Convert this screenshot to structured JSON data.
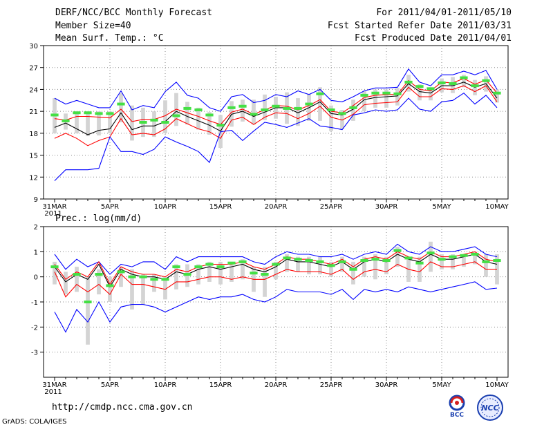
{
  "header": {
    "left_line1": "DERF/NCC/BCC Monthly Forecast",
    "left_line2": "Member Size=40",
    "left_line3": "Mean Surf. Temp.: °C",
    "right_line1": "For 2011/04/01-2011/05/10",
    "right_line2": "Fcst Started Refer Date 2011/03/31",
    "right_line3": "Fcst Produced Date 2011/04/01"
  },
  "panel2_title": "Prec.: log(mm/d)",
  "footer": {
    "url": "http://cmdp.ncc.cma.gov.cn",
    "credit": "GrADS: COLA/IGES",
    "logo1_text": "BCC",
    "logo2_text": "NCC"
  },
  "colors": {
    "min_max": "#0000ff",
    "spread": "#ff0000",
    "mean": "#000000",
    "box": "#d4d4d4",
    "marker": "#44e044",
    "grid": "#888888"
  },
  "chart_data": [
    {
      "type": "line",
      "title": "Mean Surf. Temp.: °C",
      "x_ticks": [
        "31MAR",
        "5APR",
        "10APR",
        "15APR",
        "20APR",
        "25APR",
        "30APR",
        "5MAY",
        "10MAY"
      ],
      "x_tick_days": [
        0,
        5,
        10,
        15,
        20,
        25,
        30,
        35,
        40
      ],
      "x_sublabel": "2011",
      "ylim": [
        9,
        30
      ],
      "yticks": [
        9,
        12,
        15,
        18,
        21,
        24,
        27,
        30
      ],
      "grid": true,
      "box_half_width_days": 0.18,
      "marker_half_width_days": 0.35,
      "series": [
        {
          "name": "max",
          "color": "blue",
          "values": [
            22.8,
            22.0,
            22.5,
            22.0,
            21.5,
            21.5,
            23.8,
            21.2,
            21.8,
            21.5,
            23.7,
            25.0,
            23.2,
            22.8,
            21.5,
            21.0,
            23.0,
            23.3,
            22.2,
            22.5,
            23.3,
            23.0,
            23.8,
            23.3,
            24.0,
            22.5,
            22.3,
            23.0,
            23.8,
            24.2,
            24.2,
            24.3,
            26.8,
            25.0,
            24.5,
            26.0,
            26.0,
            26.5,
            26.0,
            26.6,
            24.0
          ]
        },
        {
          "name": "spread-high",
          "color": "red",
          "values": [
            20.0,
            19.8,
            20.3,
            20.3,
            20.2,
            20.1,
            21.3,
            19.6,
            19.9,
            19.9,
            20.4,
            21.3,
            20.8,
            20.3,
            19.7,
            19.2,
            20.9,
            21.3,
            20.6,
            21.2,
            21.8,
            21.7,
            21.2,
            21.8,
            22.6,
            21.0,
            20.8,
            21.8,
            22.9,
            23.2,
            23.3,
            23.3,
            25.2,
            24.0,
            23.8,
            25.0,
            24.9,
            25.5,
            24.7,
            25.3,
            23.5
          ]
        },
        {
          "name": "mean",
          "color": "black",
          "values": [
            18.8,
            19.4,
            18.6,
            17.8,
            18.4,
            18.6,
            20.8,
            18.5,
            19.0,
            19.0,
            19.6,
            21.0,
            20.3,
            19.7,
            19.1,
            18.3,
            20.6,
            21.0,
            20.3,
            20.9,
            21.5,
            21.5,
            20.8,
            21.5,
            22.3,
            20.7,
            20.5,
            21.3,
            22.6,
            22.9,
            23.0,
            23.1,
            24.8,
            23.7,
            23.5,
            24.5,
            24.5,
            25.0,
            24.3,
            24.8,
            22.8
          ]
        },
        {
          "name": "spread-low",
          "color": "red",
          "values": [
            17.3,
            18.0,
            17.3,
            16.3,
            17.0,
            17.5,
            20.0,
            17.8,
            18.0,
            17.8,
            18.6,
            20.0,
            19.3,
            18.6,
            18.2,
            17.3,
            19.8,
            20.2,
            19.2,
            20.2,
            20.8,
            20.7,
            20.0,
            20.7,
            21.7,
            20.2,
            19.8,
            20.6,
            21.9,
            22.1,
            22.2,
            22.3,
            24.3,
            23.0,
            23.0,
            24.1,
            24.0,
            24.5,
            23.7,
            24.5,
            22.3
          ]
        },
        {
          "name": "min",
          "color": "blue",
          "values": [
            11.5,
            13.0,
            13.0,
            13.0,
            13.2,
            17.5,
            15.5,
            15.5,
            15.1,
            15.8,
            17.5,
            16.8,
            16.2,
            15.5,
            14.0,
            18.2,
            18.4,
            17.0,
            18.3,
            19.5,
            19.2,
            18.8,
            19.4,
            20.0,
            19.0,
            18.8,
            18.5,
            20.5,
            20.8,
            21.2,
            21.0,
            21.2,
            22.8,
            21.3,
            21.0,
            22.3,
            22.5,
            23.5,
            22.0,
            23.2,
            21.5
          ]
        }
      ],
      "boxes": [
        {
          "low": 18.0,
          "high": 22.8
        },
        {
          "low": 18.5,
          "high": 20.7
        },
        {
          "low": 18.0,
          "high": 21.0
        },
        {
          "low": 17.6,
          "high": 21.0
        },
        {
          "low": 17.7,
          "high": 21.0
        },
        {
          "low": 18.0,
          "high": 21.0
        },
        {
          "low": 19.5,
          "high": 23.5
        },
        {
          "low": 17.0,
          "high": 21.8
        },
        {
          "low": 17.5,
          "high": 21.5
        },
        {
          "low": 17.5,
          "high": 21.0
        },
        {
          "low": 18.0,
          "high": 22.5
        },
        {
          "low": 19.0,
          "high": 23.5
        },
        {
          "low": 19.2,
          "high": 22.3
        },
        {
          "low": 18.5,
          "high": 21.5
        },
        {
          "low": 17.8,
          "high": 20.9
        },
        {
          "low": 16.0,
          "high": 20.5
        },
        {
          "low": 18.9,
          "high": 22.4
        },
        {
          "low": 19.6,
          "high": 22.6
        },
        {
          "low": 19.2,
          "high": 22.6
        },
        {
          "low": 19.8,
          "high": 23.3
        },
        {
          "low": 20.0,
          "high": 23.0
        },
        {
          "low": 19.3,
          "high": 23.6
        },
        {
          "low": 19.0,
          "high": 22.8
        },
        {
          "low": 19.7,
          "high": 23.4
        },
        {
          "low": 19.7,
          "high": 24.3
        },
        {
          "low": 18.3,
          "high": 21.8
        },
        {
          "low": 18.6,
          "high": 21.2
        },
        {
          "low": 19.7,
          "high": 22.6
        },
        {
          "low": 21.0,
          "high": 23.8
        },
        {
          "low": 21.5,
          "high": 24.0
        },
        {
          "low": 21.5,
          "high": 24.0
        },
        {
          "low": 21.8,
          "high": 24.2
        },
        {
          "low": 23.7,
          "high": 26.0
        },
        {
          "low": 22.5,
          "high": 24.7
        },
        {
          "low": 22.5,
          "high": 24.3
        },
        {
          "low": 23.6,
          "high": 25.5
        },
        {
          "low": 23.5,
          "high": 25.7
        },
        {
          "low": 24.3,
          "high": 26.0
        },
        {
          "low": 23.2,
          "high": 25.3
        },
        {
          "low": 23.7,
          "high": 25.8
        },
        {
          "low": 22.2,
          "high": 24.0
        }
      ],
      "markers": [
        20.5,
        19.7,
        20.8,
        20.8,
        20.7,
        20.7,
        22.0,
        null,
        19.5,
        19.8,
        19.5,
        20.4,
        21.4,
        21.2,
        20.5,
        19.1,
        21.5,
        21.7,
        20.6,
        21.2,
        21.7,
        21.4,
        21.4,
        22.0,
        23.4,
        21.2,
        20.7,
        21.5,
        23.2,
        23.5,
        23.5,
        23.4,
        25.0,
        24.4,
        24.1,
        24.9,
        24.8,
        25.6,
        24.5,
        25.2,
        23.5
      ]
    },
    {
      "type": "line",
      "title": "Prec.: log(mm/d)",
      "x_ticks": [
        "31MAR",
        "5APR",
        "10APR",
        "15APR",
        "20APR",
        "25APR",
        "30APR",
        "5MAY",
        "10MAY"
      ],
      "x_tick_days": [
        0,
        5,
        10,
        15,
        20,
        25,
        30,
        35,
        40
      ],
      "x_sublabel": "2011",
      "ylim": [
        -4,
        2
      ],
      "yticks": [
        -3,
        -2,
        -1,
        0,
        1,
        2
      ],
      "grid": true,
      "box_half_width_days": 0.18,
      "marker_half_width_days": 0.35,
      "series": [
        {
          "name": "max",
          "color": "blue",
          "values": [
            0.9,
            0.3,
            0.7,
            0.4,
            0.6,
            0.1,
            0.5,
            0.4,
            0.6,
            0.6,
            0.3,
            0.8,
            0.6,
            0.8,
            0.8,
            0.8,
            0.8,
            0.8,
            0.6,
            0.5,
            0.8,
            1.0,
            0.9,
            0.9,
            0.8,
            0.8,
            0.9,
            0.7,
            0.9,
            1.0,
            0.9,
            1.3,
            1.0,
            0.9,
            1.2,
            1.0,
            1.0,
            1.1,
            1.2,
            0.9,
            0.8
          ]
        },
        {
          "name": "spread-high",
          "color": "red",
          "values": [
            0.5,
            -0.1,
            0.2,
            0.0,
            0.6,
            -0.3,
            0.4,
            0.2,
            0.1,
            0.1,
            0.0,
            0.3,
            0.2,
            0.4,
            0.5,
            0.5,
            0.5,
            0.6,
            0.4,
            0.3,
            0.5,
            0.8,
            0.7,
            0.7,
            0.6,
            0.5,
            0.7,
            0.4,
            0.7,
            0.8,
            0.7,
            1.0,
            0.8,
            0.7,
            1.0,
            0.8,
            0.8,
            0.9,
            1.0,
            0.7,
            0.6
          ]
        },
        {
          "name": "mean",
          "color": "black",
          "values": [
            0.4,
            -0.2,
            0.1,
            -0.1,
            0.5,
            -0.4,
            0.3,
            0.1,
            0.0,
            0.0,
            -0.1,
            0.2,
            0.1,
            0.3,
            0.4,
            0.3,
            0.4,
            0.5,
            0.3,
            0.2,
            0.4,
            0.7,
            0.6,
            0.6,
            0.5,
            0.4,
            0.6,
            0.3,
            0.6,
            0.7,
            0.6,
            0.9,
            0.7,
            0.6,
            0.9,
            0.7,
            0.7,
            0.8,
            0.9,
            0.6,
            0.5
          ]
        },
        {
          "name": "spread-low",
          "color": "red",
          "values": [
            0.2,
            -0.8,
            -0.3,
            -0.6,
            -0.3,
            -0.7,
            0.1,
            -0.3,
            -0.3,
            -0.4,
            -0.5,
            -0.2,
            -0.2,
            -0.1,
            0.0,
            0.0,
            -0.1,
            0.0,
            -0.1,
            -0.1,
            0.1,
            0.3,
            0.2,
            0.2,
            0.2,
            0.1,
            0.3,
            -0.1,
            0.2,
            0.3,
            0.2,
            0.5,
            0.3,
            0.2,
            0.6,
            0.4,
            0.4,
            0.5,
            0.6,
            0.3,
            0.3
          ]
        },
        {
          "name": "min",
          "color": "blue",
          "values": [
            -1.4,
            -2.2,
            -1.3,
            -1.8,
            -1.0,
            -1.8,
            -1.2,
            -1.1,
            -1.1,
            -1.2,
            -1.4,
            -1.2,
            -1.0,
            -0.8,
            -0.9,
            -0.8,
            -0.8,
            -0.7,
            -0.9,
            -1.0,
            -0.8,
            -0.5,
            -0.6,
            -0.6,
            -0.6,
            -0.7,
            -0.5,
            -0.9,
            -0.5,
            -0.6,
            -0.5,
            -0.6,
            -0.4,
            -0.5,
            -0.6,
            -0.5,
            -0.4,
            -0.3,
            -0.2,
            -0.5,
            -0.45
          ]
        }
      ],
      "boxes": [
        {
          "low": -0.3,
          "high": 0.6
        },
        {
          "low": -0.7,
          "high": 0.2
        },
        {
          "low": -0.6,
          "high": 0.4
        },
        {
          "low": -2.7,
          "high": 0.0
        },
        {
          "low": -0.7,
          "high": 0.3
        },
        {
          "low": -1.0,
          "high": 0.0
        },
        {
          "low": -0.4,
          "high": 0.4
        },
        {
          "low": -1.3,
          "high": 0.3
        },
        {
          "low": -1.1,
          "high": 0.1
        },
        {
          "low": -0.6,
          "high": 0.1
        },
        {
          "low": -0.9,
          "high": 0.0
        },
        {
          "low": -0.5,
          "high": 0.5
        },
        {
          "low": -0.4,
          "high": 0.5
        },
        {
          "low": -0.3,
          "high": 0.5
        },
        {
          "low": -0.2,
          "high": 0.6
        },
        {
          "low": -0.3,
          "high": 0.6
        },
        {
          "low": -0.2,
          "high": 0.6
        },
        {
          "low": -0.1,
          "high": 0.7
        },
        {
          "low": -0.6,
          "high": 0.4
        },
        {
          "low": -0.8,
          "high": 0.4
        },
        {
          "low": -0.1,
          "high": 0.6
        },
        {
          "low": 0.2,
          "high": 0.9
        },
        {
          "low": 0.2,
          "high": 0.8
        },
        {
          "low": 0.1,
          "high": 0.8
        },
        {
          "low": 0.1,
          "high": 0.8
        },
        {
          "low": 0.0,
          "high": 0.6
        },
        {
          "low": 0.2,
          "high": 0.8
        },
        {
          "low": -0.3,
          "high": 0.6
        },
        {
          "low": 0.0,
          "high": 0.8
        },
        {
          "low": -0.1,
          "high": 0.9
        },
        {
          "low": 0.1,
          "high": 0.8
        },
        {
          "low": 0.4,
          "high": 1.2
        },
        {
          "low": -0.2,
          "high": 0.8
        },
        {
          "low": -0.2,
          "high": 0.8
        },
        {
          "low": 0.2,
          "high": 1.4
        },
        {
          "low": 0.3,
          "high": 0.9
        },
        {
          "low": 0.3,
          "high": 0.9
        },
        {
          "low": 0.4,
          "high": 0.9
        },
        {
          "low": 0.5,
          "high": 1.0
        },
        {
          "low": 0.0,
          "high": 0.9
        },
        {
          "low": -0.3,
          "high": 0.9
        }
      ],
      "markers": [
        0.4,
        null,
        0.1,
        -1.0,
        0.1,
        -0.35,
        0.2,
        0.0,
        0.0,
        -0.1,
        -0.1,
        0.4,
        0.1,
        0.4,
        0.5,
        0.4,
        0.55,
        0.6,
        0.15,
        0.1,
        0.5,
        0.75,
        0.7,
        0.65,
        0.6,
        0.45,
        0.6,
        0.3,
        0.65,
        0.7,
        0.65,
        1.05,
        0.75,
        0.55,
        0.95,
        0.7,
        0.8,
        0.85,
        0.9,
        0.6,
        0.65
      ]
    }
  ]
}
